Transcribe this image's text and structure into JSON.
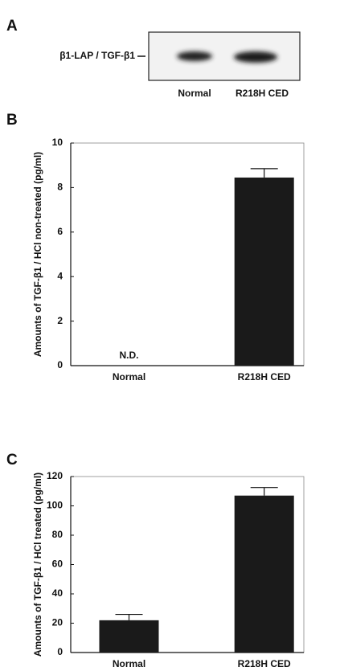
{
  "blot": {
    "panel_label": "A",
    "band_label": "β1-LAP / TGF-β1",
    "lanes": [
      "Normal",
      "R218H CED"
    ]
  },
  "chart_data": [
    {
      "type": "bar",
      "panel_label": "B",
      "y_label": "Amounts of TGF-β1 / HCl non-treated (pg/ml)",
      "categories": [
        "Normal",
        "R218H CED"
      ],
      "values": [
        null,
        8.45
      ],
      "errors": [
        null,
        0.4
      ],
      "value_labels": [
        "N.D.",
        null
      ],
      "color": "#1a1a1a",
      "ylim": [
        0,
        10
      ],
      "yticks": [
        0,
        2,
        4,
        6,
        8,
        10
      ]
    },
    {
      "type": "bar",
      "panel_label": "C",
      "y_label": "Amounts of TGF-β1 / HCl treated (pg/ml)",
      "categories": [
        "Normal",
        "R218H CED"
      ],
      "values": [
        22,
        107
      ],
      "errors": [
        4,
        5.5
      ],
      "color": "#1a1a1a",
      "ylim": [
        0,
        120
      ],
      "yticks": [
        0,
        20,
        40,
        60,
        80,
        100,
        120
      ]
    }
  ]
}
